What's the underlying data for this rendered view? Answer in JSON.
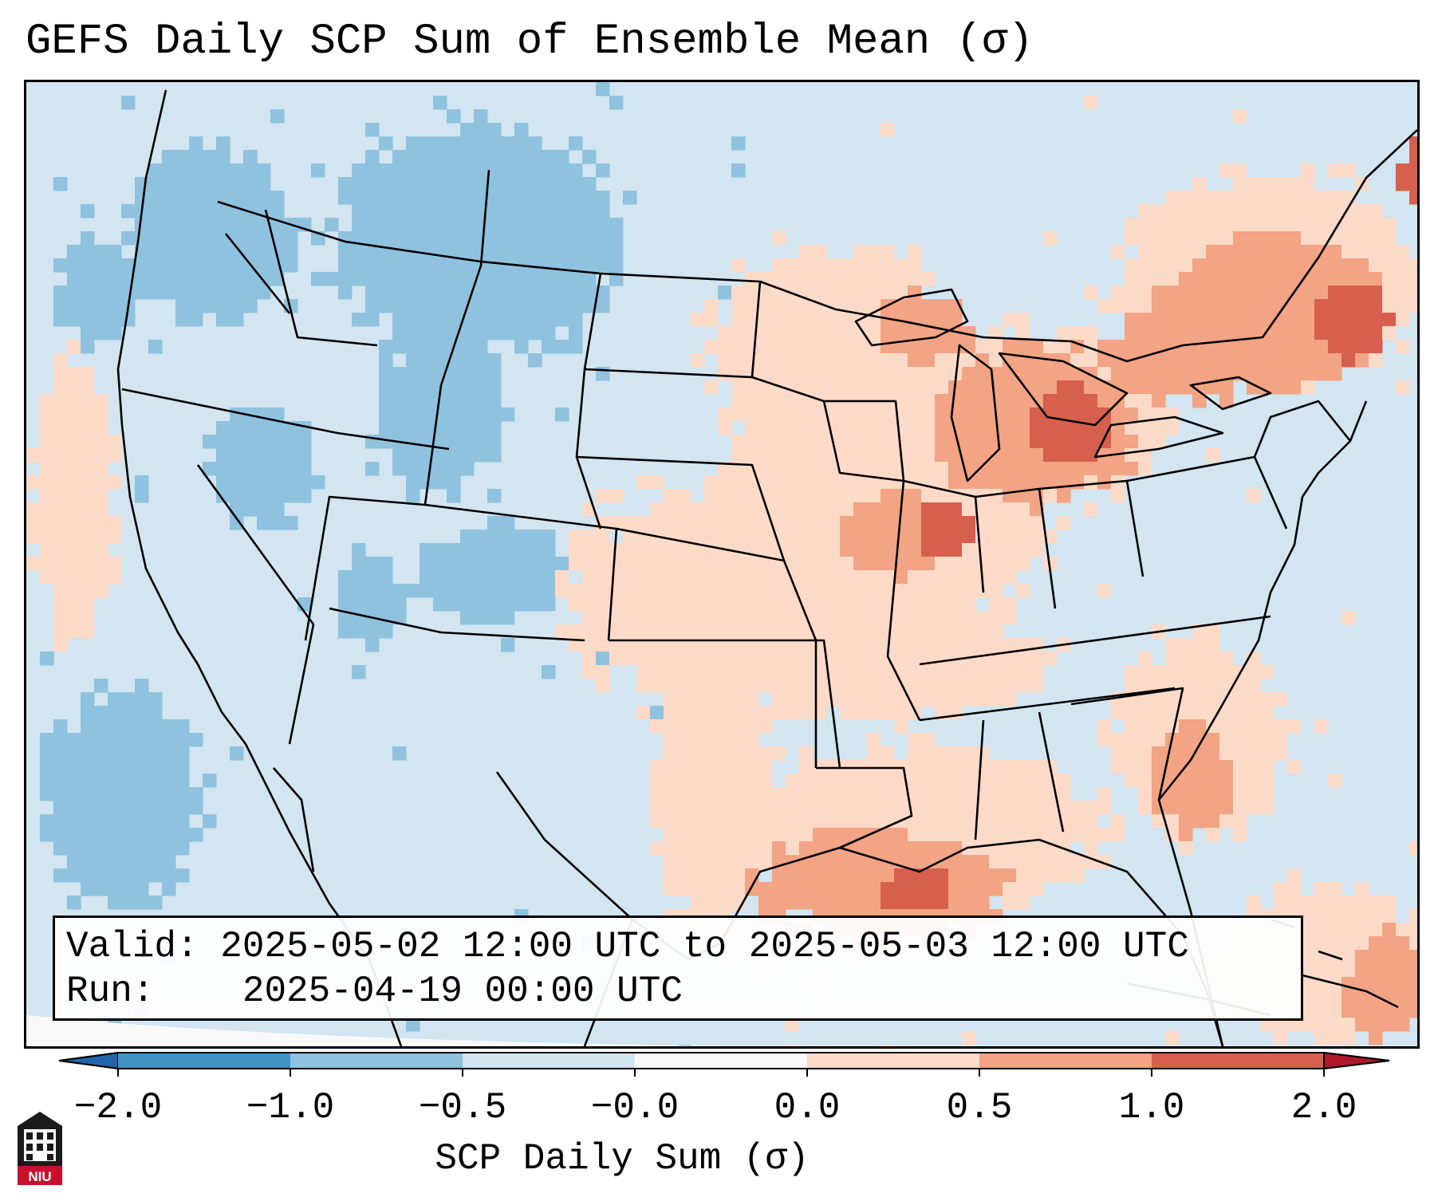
{
  "title": "GEFS Daily SCP Sum of Ensemble Mean (σ)",
  "info": {
    "valid_label": "Valid:",
    "valid_value": "2025-05-02 12:00 UTC to 2025-05-03 12:00 UTC",
    "run_label": "Run:",
    "run_value": "2025-04-19 00:00 UTC"
  },
  "colorbar": {
    "label": "SCP Daily Sum (σ)",
    "ticks": [
      "−2.0",
      "−1.0",
      "−0.5",
      "−0.0",
      "0.0",
      "0.5",
      "1.0",
      "2.0"
    ],
    "colors": [
      "#4293c4",
      "#8fc2de",
      "#d1e5f0",
      "#f9f9f9",
      "#fcdac8",
      "#f2a484",
      "#d6604d"
    ],
    "extend_low_color": "#2166ac",
    "extend_high_color": "#b2182b"
  },
  "map": {
    "background_color": "#d2e5f0",
    "line_color": "#000000"
  },
  "logo": {
    "text": "NIU",
    "color": "#c8102e"
  }
}
